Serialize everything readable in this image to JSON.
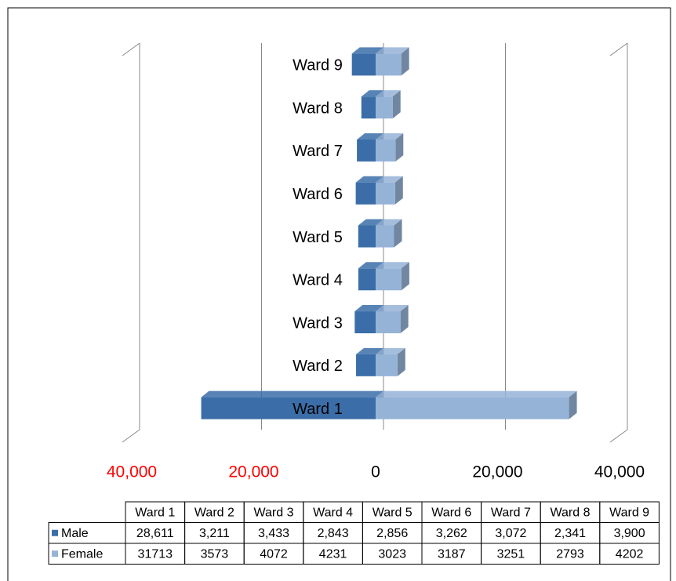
{
  "chart_data": {
    "type": "bar",
    "categories": [
      "Ward 1",
      "Ward 2",
      "Ward 3",
      "Ward 4",
      "Ward 5",
      "Ward 6",
      "Ward 7",
      "Ward 8",
      "Ward 9"
    ],
    "series": [
      {
        "name": "Male",
        "color": "#3b6ea8",
        "side": "left",
        "values": [
          28611,
          3211,
          3433,
          2843,
          2856,
          3262,
          3072,
          2341,
          3900
        ],
        "value_labels": [
          "28,611",
          "3,211",
          "3,433",
          "2,843",
          "2,856",
          "3,262",
          "3,072",
          "2,341",
          "3,900"
        ]
      },
      {
        "name": "Female",
        "color": "#95b3d7",
        "side": "right",
        "values": [
          31713,
          3573,
          4072,
          4231,
          3023,
          3187,
          3251,
          2793,
          4202
        ]
      }
    ],
    "xlim": [
      -40000,
      40000
    ],
    "xticks": [
      {
        "value": -40000,
        "label": "40,000"
      },
      {
        "value": -20000,
        "label": "20,000"
      },
      0,
      {
        "value": 20000,
        "label": "20,000"
      },
      {
        "value": 40000,
        "label": "40,000"
      }
    ],
    "negative_tick_color": "#ff0000",
    "grid": true
  }
}
